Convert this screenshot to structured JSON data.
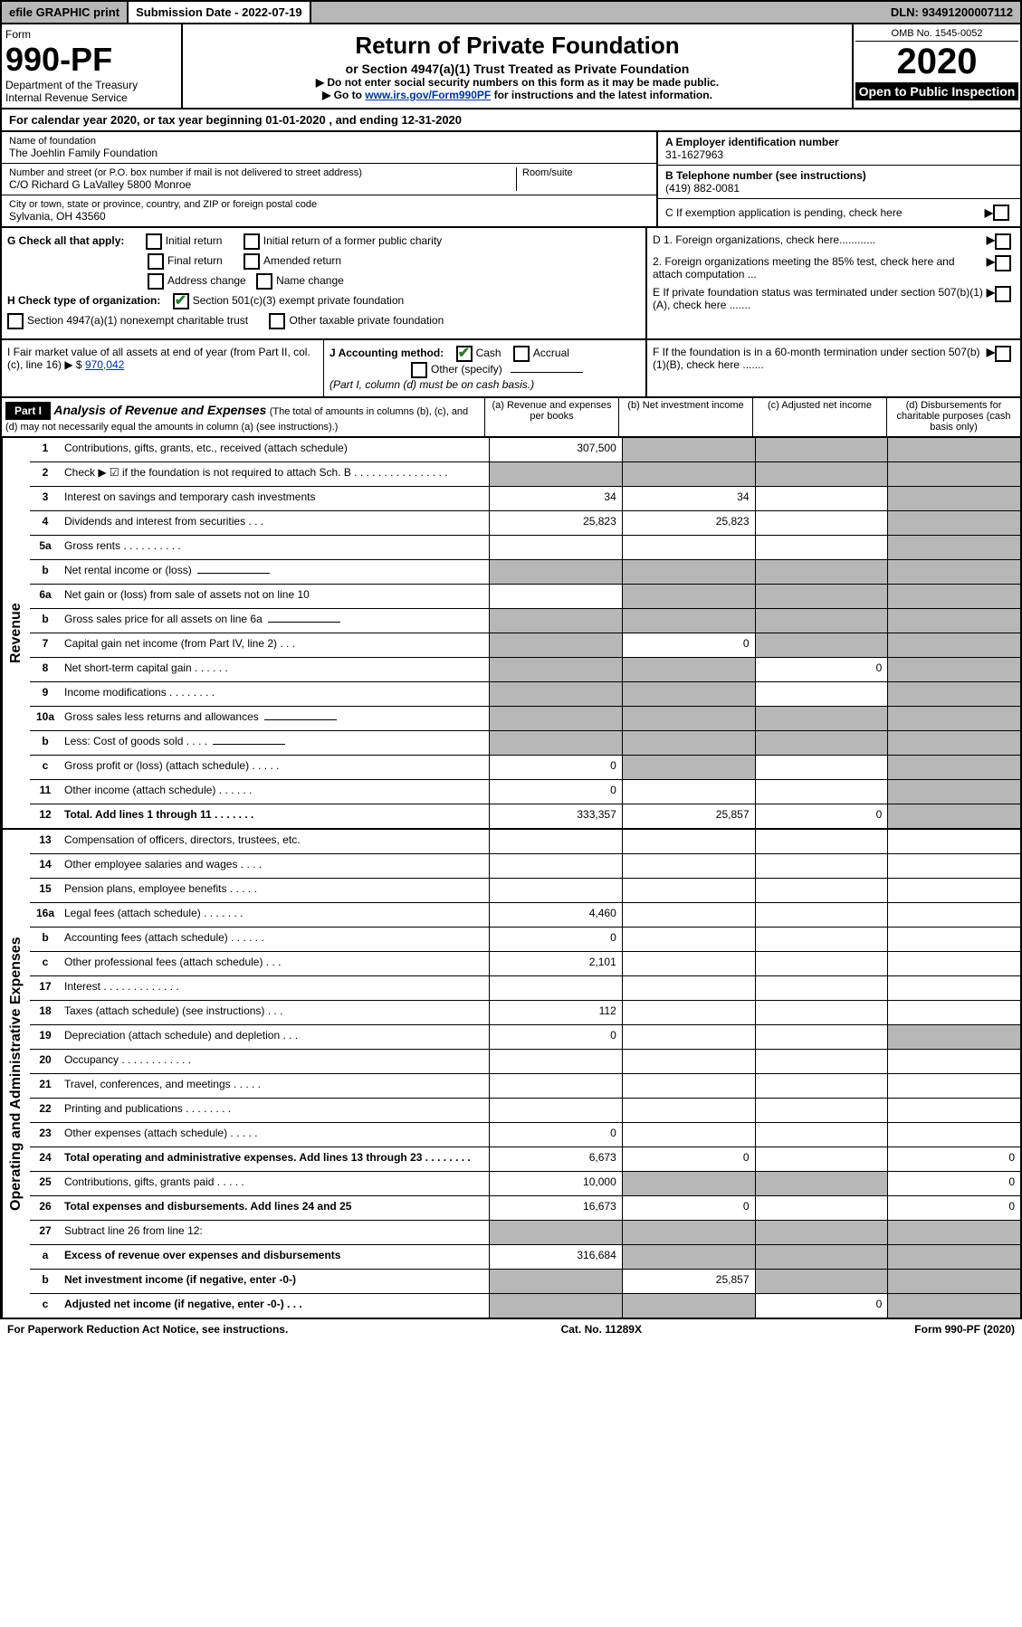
{
  "topbar": {
    "efile": "efile GRAPHIC print",
    "submission_label": "Submission Date - 2022-07-19",
    "dln": "DLN: 93491200007112"
  },
  "header": {
    "form_label": "Form",
    "form_num": "990-PF",
    "dept": "Department of the Treasury",
    "irs": "Internal Revenue Service",
    "title": "Return of Private Foundation",
    "subtitle": "or Section 4947(a)(1) Trust Treated as Private Foundation",
    "note1": "▶ Do not enter social security numbers on this form as it may be made public.",
    "note2_pre": "▶ Go to ",
    "note2_link": "www.irs.gov/Form990PF",
    "note2_post": " for instructions and the latest information.",
    "omb": "OMB No. 1545-0052",
    "year": "2020",
    "inspect": "Open to Public Inspection"
  },
  "calendar": {
    "text_pre": "For calendar year 2020, or tax year beginning ",
    "begin": "01-01-2020",
    "text_mid": " , and ending ",
    "end": "12-31-2020"
  },
  "info": {
    "name_label": "Name of foundation",
    "name": "The Joehlin Family Foundation",
    "addr_label": "Number and street (or P.O. box number if mail is not delivered to street address)",
    "addr": "C/O Richard G LaValley 5800 Monroe",
    "room_label": "Room/suite",
    "city_label": "City or town, state or province, country, and ZIP or foreign postal code",
    "city": "Sylvania, OH  43560",
    "a_label": "A Employer identification number",
    "a_val": "31-1627963",
    "b_label": "B Telephone number (see instructions)",
    "b_val": "(419) 882-0081",
    "c_label": "C If exemption application is pending, check here"
  },
  "checks": {
    "g_label": "G Check all that apply:",
    "g_opts": [
      "Initial return",
      "Initial return of a former public charity",
      "Final return",
      "Amended return",
      "Address change",
      "Name change"
    ],
    "h_label": "H Check type of organization:",
    "h1": "Section 501(c)(3) exempt private foundation",
    "h2": "Section 4947(a)(1) nonexempt charitable trust",
    "h3": "Other taxable private foundation",
    "d1": "D 1. Foreign organizations, check here............",
    "d2": "2. Foreign organizations meeting the 85% test, check here and attach computation ...",
    "e": "E  If private foundation status was terminated under section 507(b)(1)(A), check here .......",
    "i_label": "I Fair market value of all assets at end of year (from Part II, col. (c), line 16) ▶ $",
    "i_val": "970,042",
    "j_label": "J Accounting method:",
    "j_cash": "Cash",
    "j_accrual": "Accrual",
    "j_other": "Other (specify)",
    "j_note": "(Part I, column (d) must be on cash basis.)",
    "f": "F  If the foundation is in a 60-month termination under section 507(b)(1)(B), check here ......."
  },
  "part1": {
    "label": "Part I",
    "title": "Analysis of Revenue and Expenses",
    "note": "(The total of amounts in columns (b), (c), and (d) may not necessarily equal the amounts in column (a) (see instructions).)",
    "col_a": "(a)  Revenue and expenses per books",
    "col_b": "(b)  Net investment income",
    "col_c": "(c)  Adjusted net income",
    "col_d": "(d)  Disbursements for charitable purposes (cash basis only)"
  },
  "side_labels": {
    "revenue": "Revenue",
    "expenses": "Operating and Administrative Expenses"
  },
  "rows": [
    {
      "n": "1",
      "l": "Contributions, gifts, grants, etc., received (attach schedule)",
      "a": "307,500",
      "b": "",
      "c": "",
      "d": "",
      "grey": [
        "b",
        "c",
        "d"
      ]
    },
    {
      "n": "2",
      "l": "Check ▶ ☑ if the foundation is not required to attach Sch. B   .  .  .  .  .  .  .  .  .  .  .  .  .  .  .  .",
      "a": "",
      "b": "",
      "c": "",
      "d": "",
      "grey": [
        "a",
        "b",
        "c",
        "d"
      ],
      "allgrey": true,
      "checked": true
    },
    {
      "n": "3",
      "l": "Interest on savings and temporary cash investments",
      "a": "34",
      "b": "34",
      "c": "",
      "d": "",
      "grey": [
        "d"
      ]
    },
    {
      "n": "4",
      "l": "Dividends and interest from securities   .   .   .",
      "a": "25,823",
      "b": "25,823",
      "c": "",
      "d": "",
      "grey": [
        "d"
      ]
    },
    {
      "n": "5a",
      "l": "Gross rents   .   .   .   .   .   .   .   .   .   .",
      "a": "",
      "b": "",
      "c": "",
      "d": "",
      "grey": [
        "d"
      ]
    },
    {
      "n": "b",
      "l": "Net rental income or (loss)",
      "a": "",
      "b": "",
      "c": "",
      "d": "",
      "grey": [
        "a",
        "b",
        "c",
        "d"
      ],
      "sub": true
    },
    {
      "n": "6a",
      "l": "Net gain or (loss) from sale of assets not on line 10",
      "a": "",
      "b": "",
      "c": "",
      "d": "",
      "grey": [
        "b",
        "c",
        "d"
      ]
    },
    {
      "n": "b",
      "l": "Gross sales price for all assets on line 6a",
      "a": "",
      "b": "",
      "c": "",
      "d": "",
      "grey": [
        "a",
        "b",
        "c",
        "d"
      ],
      "sub": true
    },
    {
      "n": "7",
      "l": "Capital gain net income (from Part IV, line 2)   .   .   .",
      "a": "",
      "b": "0",
      "c": "",
      "d": "",
      "grey": [
        "a",
        "c",
        "d"
      ]
    },
    {
      "n": "8",
      "l": "Net short-term capital gain   .   .   .   .   .   .",
      "a": "",
      "b": "",
      "c": "0",
      "d": "",
      "grey": [
        "a",
        "b",
        "d"
      ]
    },
    {
      "n": "9",
      "l": "Income modifications  .   .   .   .   .   .   .   .",
      "a": "",
      "b": "",
      "c": "",
      "d": "",
      "grey": [
        "a",
        "b",
        "d"
      ]
    },
    {
      "n": "10a",
      "l": "Gross sales less returns and allowances",
      "a": "",
      "b": "",
      "c": "",
      "d": "",
      "grey": [
        "a",
        "b",
        "c",
        "d"
      ],
      "sub": true
    },
    {
      "n": "b",
      "l": "Less: Cost of goods sold   .   .   .   .",
      "a": "",
      "b": "",
      "c": "",
      "d": "",
      "grey": [
        "a",
        "b",
        "c",
        "d"
      ],
      "sub": true
    },
    {
      "n": "c",
      "l": "Gross profit or (loss) (attach schedule)   .   .   .   .   .",
      "a": "0",
      "b": "",
      "c": "",
      "d": "",
      "grey": [
        "b",
        "d"
      ]
    },
    {
      "n": "11",
      "l": "Other income (attach schedule)   .   .   .   .   .   .",
      "a": "0",
      "b": "",
      "c": "",
      "d": "",
      "grey": [
        "d"
      ]
    },
    {
      "n": "12",
      "l": "Total. Add lines 1 through 11   .   .   .   .   .   .   .",
      "a": "333,357",
      "b": "25,857",
      "c": "0",
      "d": "",
      "grey": [
        "d"
      ],
      "bold": true
    }
  ],
  "exp_rows": [
    {
      "n": "13",
      "l": "Compensation of officers, directors, trustees, etc.",
      "a": "",
      "b": "",
      "c": "",
      "d": ""
    },
    {
      "n": "14",
      "l": "Other employee salaries and wages   .   .   .   .",
      "a": "",
      "b": "",
      "c": "",
      "d": ""
    },
    {
      "n": "15",
      "l": "Pension plans, employee benefits   .   .   .   .   .",
      "a": "",
      "b": "",
      "c": "",
      "d": ""
    },
    {
      "n": "16a",
      "l": "Legal fees (attach schedule)  .   .   .   .   .   .   .",
      "a": "4,460",
      "b": "",
      "c": "",
      "d": ""
    },
    {
      "n": "b",
      "l": "Accounting fees (attach schedule)   .   .   .   .   .   .",
      "a": "0",
      "b": "",
      "c": "",
      "d": ""
    },
    {
      "n": "c",
      "l": "Other professional fees (attach schedule)   .   .   .",
      "a": "2,101",
      "b": "",
      "c": "",
      "d": ""
    },
    {
      "n": "17",
      "l": "Interest  .   .   .   .   .   .   .   .   .   .   .   .   .",
      "a": "",
      "b": "",
      "c": "",
      "d": ""
    },
    {
      "n": "18",
      "l": "Taxes (attach schedule) (see instructions)   .   .   .",
      "a": "112",
      "b": "",
      "c": "",
      "d": ""
    },
    {
      "n": "19",
      "l": "Depreciation (attach schedule) and depletion   .   .   .",
      "a": "0",
      "b": "",
      "c": "",
      "d": "",
      "grey": [
        "d"
      ]
    },
    {
      "n": "20",
      "l": "Occupancy  .   .   .   .   .   .   .   .   .   .   .   .",
      "a": "",
      "b": "",
      "c": "",
      "d": ""
    },
    {
      "n": "21",
      "l": "Travel, conferences, and meetings  .   .   .   .   .",
      "a": "",
      "b": "",
      "c": "",
      "d": ""
    },
    {
      "n": "22",
      "l": "Printing and publications  .   .   .   .   .   .   .   .",
      "a": "",
      "b": "",
      "c": "",
      "d": ""
    },
    {
      "n": "23",
      "l": "Other expenses (attach schedule)   .   .   .   .   .",
      "a": "0",
      "b": "",
      "c": "",
      "d": ""
    },
    {
      "n": "24",
      "l": "Total operating and administrative expenses. Add lines 13 through 23  .  .  .  .  .  .  .  .",
      "a": "6,673",
      "b": "0",
      "c": "",
      "d": "0",
      "bold": true
    },
    {
      "n": "25",
      "l": "Contributions, gifts, grants paid   .   .   .   .   .",
      "a": "10,000",
      "b": "",
      "c": "",
      "d": "0",
      "grey": [
        "b",
        "c"
      ]
    },
    {
      "n": "26",
      "l": "Total expenses and disbursements. Add lines 24 and 25",
      "a": "16,673",
      "b": "0",
      "c": "",
      "d": "0",
      "bold": true
    },
    {
      "n": "27",
      "l": "Subtract line 26 from line 12:",
      "a": "",
      "b": "",
      "c": "",
      "d": "",
      "grey": [
        "a",
        "b",
        "c",
        "d"
      ]
    },
    {
      "n": "a",
      "l": "Excess of revenue over expenses and disbursements",
      "a": "316,684",
      "b": "",
      "c": "",
      "d": "",
      "grey": [
        "b",
        "c",
        "d"
      ],
      "bold": true
    },
    {
      "n": "b",
      "l": "Net investment income (if negative, enter -0-)",
      "a": "",
      "b": "25,857",
      "c": "",
      "d": "",
      "grey": [
        "a",
        "c",
        "d"
      ],
      "bold": true
    },
    {
      "n": "c",
      "l": "Adjusted net income (if negative, enter -0-)   .   .   .",
      "a": "",
      "b": "",
      "c": "0",
      "d": "",
      "grey": [
        "a",
        "b",
        "d"
      ],
      "bold": true
    }
  ],
  "footer": {
    "left": "For Paperwork Reduction Act Notice, see instructions.",
    "mid": "Cat. No. 11289X",
    "right": "Form 990-PF (2020)"
  }
}
